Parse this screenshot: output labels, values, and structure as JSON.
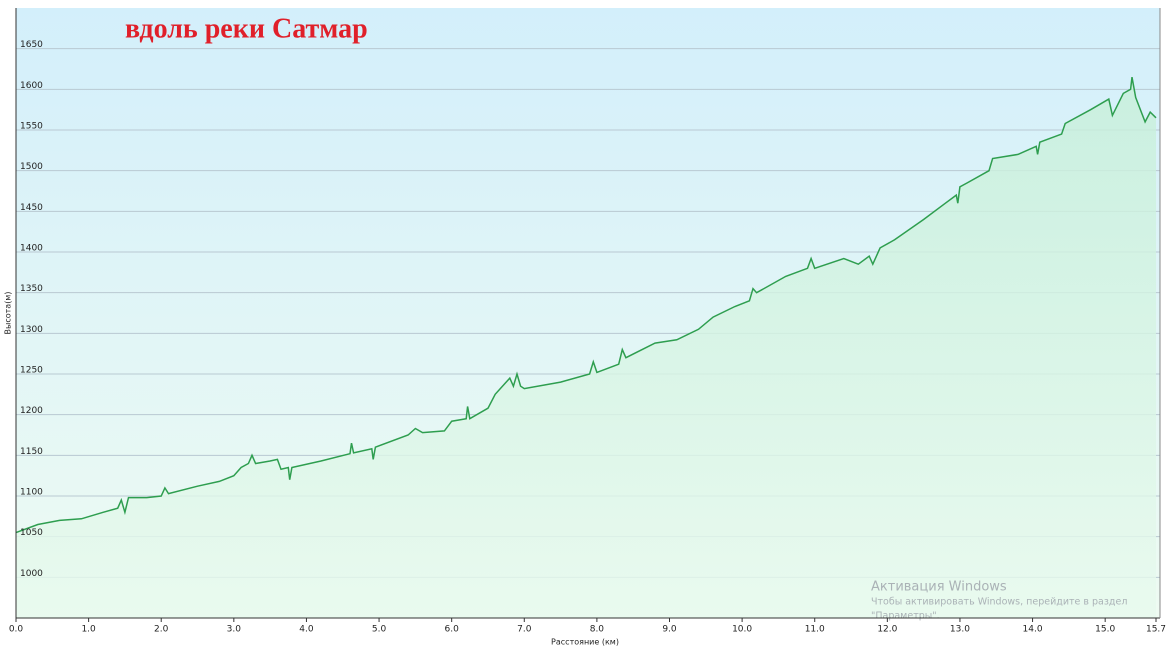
{
  "chart_data": {
    "type": "area",
    "title": "вдоль реки Сатмар",
    "x_label": "Расстояние  (км)",
    "y_label": "Высота(м)",
    "x": [
      0,
      0.3,
      0.6,
      0.9,
      1.2,
      1.4,
      1.45,
      1.5,
      1.55,
      1.8,
      2.0,
      2.05,
      2.1,
      2.5,
      2.8,
      3.0,
      3.1,
      3.2,
      3.25,
      3.3,
      3.5,
      3.6,
      3.65,
      3.75,
      3.77,
      3.8,
      4.2,
      4.6,
      4.62,
      4.65,
      4.9,
      4.92,
      4.95,
      5.4,
      5.5,
      5.6,
      5.9,
      6.0,
      6.2,
      6.22,
      6.25,
      6.5,
      6.6,
      6.8,
      6.85,
      6.9,
      6.95,
      7.0,
      7.5,
      7.9,
      7.95,
      8.0,
      8.3,
      8.35,
      8.4,
      8.8,
      9.1,
      9.4,
      9.6,
      9.9,
      10.1,
      10.15,
      10.2,
      10.6,
      10.9,
      10.95,
      11.0,
      11.4,
      11.6,
      11.75,
      11.8,
      11.9,
      12.1,
      12.5,
      12.8,
      12.95,
      12.97,
      13.0,
      13.1,
      13.4,
      13.45,
      13.8,
      14.05,
      14.07,
      14.1,
      14.4,
      14.45,
      14.8,
      15.05,
      15.1,
      15.25,
      15.35,
      15.37,
      15.42,
      15.55,
      15.62,
      15.7
    ],
    "series": [
      {
        "name": "Высота",
        "color": "#2e9e4f",
        "values": [
          1055,
          1065,
          1070,
          1072,
          1080,
          1085,
          1095,
          1080,
          1098,
          1098,
          1100,
          1110,
          1103,
          1112,
          1118,
          1125,
          1135,
          1140,
          1150,
          1140,
          1143,
          1145,
          1133,
          1135,
          1120,
          1135,
          1143,
          1152,
          1165,
          1153,
          1158,
          1145,
          1160,
          1175,
          1183,
          1178,
          1180,
          1192,
          1195,
          1210,
          1195,
          1208,
          1225,
          1245,
          1235,
          1250,
          1235,
          1232,
          1240,
          1250,
          1265,
          1252,
          1262,
          1280,
          1270,
          1288,
          1292,
          1305,
          1320,
          1333,
          1340,
          1355,
          1350,
          1370,
          1380,
          1392,
          1380,
          1392,
          1385,
          1395,
          1385,
          1405,
          1415,
          1440,
          1460,
          1470,
          1460,
          1480,
          1485,
          1500,
          1515,
          1520,
          1530,
          1520,
          1535,
          1545,
          1558,
          1575,
          1588,
          1568,
          1595,
          1600,
          1615,
          1590,
          1560,
          1572,
          1565
        ]
      }
    ],
    "xlim": [
      0,
      15.7
    ],
    "ylim": [
      950,
      1700
    ],
    "xticks": [
      {
        "value": 0,
        "label": "0.0"
      },
      {
        "value": 1,
        "label": "1.0"
      },
      {
        "value": 2,
        "label": "2.0"
      },
      {
        "value": 3,
        "label": "3.0"
      },
      {
        "value": 4,
        "label": "4.0"
      },
      {
        "value": 5,
        "label": "5.0"
      },
      {
        "value": 6,
        "label": "6.0"
      },
      {
        "value": 7,
        "label": "7.0"
      },
      {
        "value": 8,
        "label": "8.0"
      },
      {
        "value": 9,
        "label": "9.0"
      },
      {
        "value": 10,
        "label": "10.0"
      },
      {
        "value": 11,
        "label": "11.0"
      },
      {
        "value": 12,
        "label": "12.0"
      },
      {
        "value": 13,
        "label": "13.0"
      },
      {
        "value": 14,
        "label": "14.0"
      },
      {
        "value": 15,
        "label": "15.0"
      },
      15.7
    ],
    "yticks": [
      1000,
      1050,
      1100,
      1150,
      1200,
      1250,
      1300,
      1350,
      1400,
      1450,
      1500,
      1550,
      1600,
      1650
    ],
    "grid": true
  },
  "watermark": {
    "title": "Активация Windows",
    "lines": [
      "Чтобы активировать Windows, перейдите в раздел",
      "\"Параметры\"."
    ]
  }
}
